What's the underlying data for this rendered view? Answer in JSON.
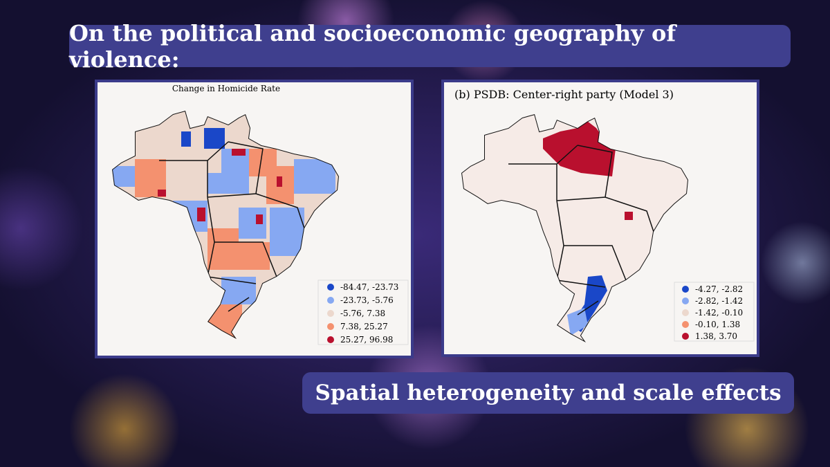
{
  "title": "On the political and socioeconomic geography of violence:",
  "subtitle": "Spatial heterogeneity and scale effects",
  "maps": [
    {
      "title": "Change in Homicide Rate",
      "legend": [
        {
          "label": "-84.47, -23.73",
          "color": "#1a47c8"
        },
        {
          "label": "-23.73, -5.76",
          "color": "#86a8f2"
        },
        {
          "label": "-5.76, 7.38",
          "color": "#ecd8cd"
        },
        {
          "label": "7.38, 25.27",
          "color": "#f4916f"
        },
        {
          "label": "25.27, 96.98",
          "color": "#b9102e"
        }
      ]
    },
    {
      "title": "(b) PSDB: Center-right party (Model 3)",
      "legend": [
        {
          "label": "-4.27, -2.82",
          "color": "#1a47c8"
        },
        {
          "label": "-2.82, -1.42",
          "color": "#86a8f2"
        },
        {
          "label": "-1.42, -0.10",
          "color": "#ecd8cd"
        },
        {
          "label": "-0.10, 1.38",
          "color": "#f4916f"
        },
        {
          "label": "1.38, 3.70",
          "color": "#b9102e"
        }
      ]
    }
  ]
}
